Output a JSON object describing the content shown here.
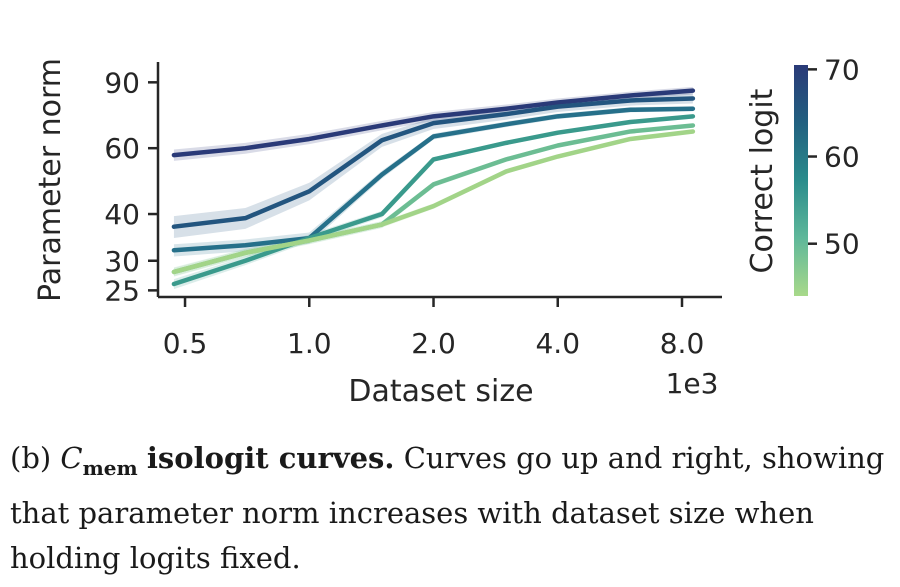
{
  "chart_data": {
    "type": "line",
    "xlabel": "Dataset size",
    "x_offset_label": "1e3",
    "ylabel": "Parameter norm",
    "x_scale": "log",
    "y_scale": "log",
    "xlim": [
      0.43,
      10.0
    ],
    "ylim": [
      24.0,
      102.0
    ],
    "x_ticks": [
      0.5,
      1.0,
      2.0,
      4.0,
      8.0
    ],
    "x_tick_labels": [
      "0.5",
      "1.0",
      "2.0",
      "4.0",
      "8.0"
    ],
    "y_ticks": [
      25,
      30,
      40,
      60,
      90
    ],
    "y_tick_labels": [
      "25",
      "30",
      "40",
      "60",
      "90"
    ],
    "x": [
      0.47,
      0.7,
      1.0,
      1.5,
      2.0,
      3.0,
      4.0,
      6.0,
      8.5
    ],
    "colorbar": {
      "label": "Correct logit",
      "ticks": [
        50,
        60,
        70
      ],
      "tick_labels": [
        "50",
        "60",
        "70"
      ],
      "range": [
        44,
        70.5
      ],
      "colors": [
        "#a8d98a",
        "#5fb89a",
        "#2a8c8c",
        "#226080",
        "#2a3a78"
      ]
    },
    "series": [
      {
        "color": "#2a3a78",
        "values": [
          57.5,
          60.0,
          63.5,
          69.0,
          73.0,
          76.5,
          79.5,
          83.0,
          85.5
        ],
        "band": 2.0
      },
      {
        "color": "#23557f",
        "values": [
          37.0,
          39.0,
          46.0,
          63.0,
          70.0,
          74.0,
          77.5,
          80.5,
          81.5
        ],
        "band": 2.5
      },
      {
        "color": "#26708a",
        "values": [
          32.0,
          33.0,
          34.5,
          51.0,
          64.5,
          69.5,
          73.0,
          76.0,
          76.5
        ],
        "band": 1.2
      },
      {
        "color": "#3a9a8c",
        "values": [
          26.0,
          30.0,
          34.5,
          40.0,
          56.0,
          62.0,
          66.0,
          70.5,
          73.0
        ],
        "band": 0.8
      },
      {
        "color": "#6cbd93",
        "values": [
          28.0,
          31.5,
          34.0,
          37.5,
          48.0,
          56.0,
          61.0,
          66.5,
          69.0
        ],
        "band": 0.8
      },
      {
        "color": "#a2d488",
        "values": [
          28.0,
          31.5,
          34.0,
          37.5,
          42.0,
          52.0,
          57.0,
          63.5,
          66.5
        ],
        "band": 0.7
      }
    ]
  },
  "caption": {
    "fig_label": "(b)",
    "cmem_main": "C",
    "cmem_sub": "mem",
    "bold_title": "isologit curves.",
    "body": "Curves go up and right, showing that parameter norm increases with dataset size when holding logits fixed."
  }
}
